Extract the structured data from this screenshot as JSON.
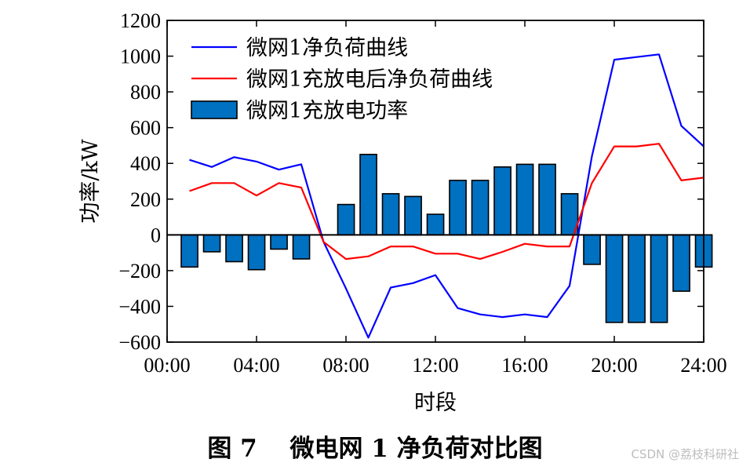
{
  "chart_data": {
    "type": "bar+line",
    "ylabel": "功率/kW",
    "xlabel": "时段",
    "ylim": [
      -600,
      1200
    ],
    "yticks": [
      -600,
      -400,
      -200,
      0,
      200,
      400,
      600,
      800,
      1000,
      1200
    ],
    "xlim": [
      0,
      24
    ],
    "xticks": [
      0,
      4,
      8,
      12,
      16,
      20,
      24
    ],
    "xtick_labels": [
      "00:00",
      "04:00",
      "08:00",
      "12:00",
      "16:00",
      "20:00",
      "24:00"
    ],
    "legend_position": "top-left",
    "series": [
      {
        "name": "微网1净负荷曲线",
        "type": "line",
        "color": "#0000ff",
        "x": [
          1,
          2,
          3,
          4,
          5,
          6,
          7,
          8,
          9,
          10,
          11,
          12,
          13,
          14,
          15,
          16,
          17,
          18,
          19,
          20,
          21,
          22,
          23,
          24
        ],
        "values": [
          420,
          380,
          435,
          410,
          365,
          395,
          -40,
          -300,
          -575,
          -295,
          -270,
          -225,
          -410,
          -445,
          -460,
          -445,
          -460,
          -285,
          440,
          980,
          995,
          1010,
          610,
          495
        ]
      },
      {
        "name": "微网1充放电后净负荷曲线",
        "type": "line",
        "color": "#ff0000",
        "x": [
          1,
          2,
          3,
          4,
          5,
          6,
          7,
          8,
          9,
          10,
          11,
          12,
          13,
          14,
          15,
          16,
          17,
          18,
          19,
          20,
          21,
          22,
          23,
          24
        ],
        "values": [
          245,
          290,
          290,
          220,
          290,
          265,
          -40,
          -135,
          -120,
          -65,
          -65,
          -105,
          -105,
          -135,
          -95,
          -50,
          -65,
          -65,
          290,
          495,
          495,
          510,
          305,
          320
        ]
      },
      {
        "name": "微网1充放电功率",
        "type": "bar",
        "color": "#0070c0",
        "x": [
          1,
          2,
          3,
          4,
          5,
          6,
          7,
          8,
          9,
          10,
          11,
          12,
          13,
          14,
          15,
          16,
          17,
          18,
          19,
          20,
          21,
          22,
          23,
          24
        ],
        "values": [
          -180,
          -95,
          -150,
          -195,
          -80,
          -135,
          0,
          170,
          450,
          230,
          215,
          115,
          305,
          305,
          380,
          395,
          395,
          230,
          -165,
          -490,
          -490,
          -490,
          -315,
          -180
        ]
      }
    ]
  },
  "caption": "图 7　 微电网 1 净负荷对比图",
  "watermark": "CSDN @荔枝科研社"
}
